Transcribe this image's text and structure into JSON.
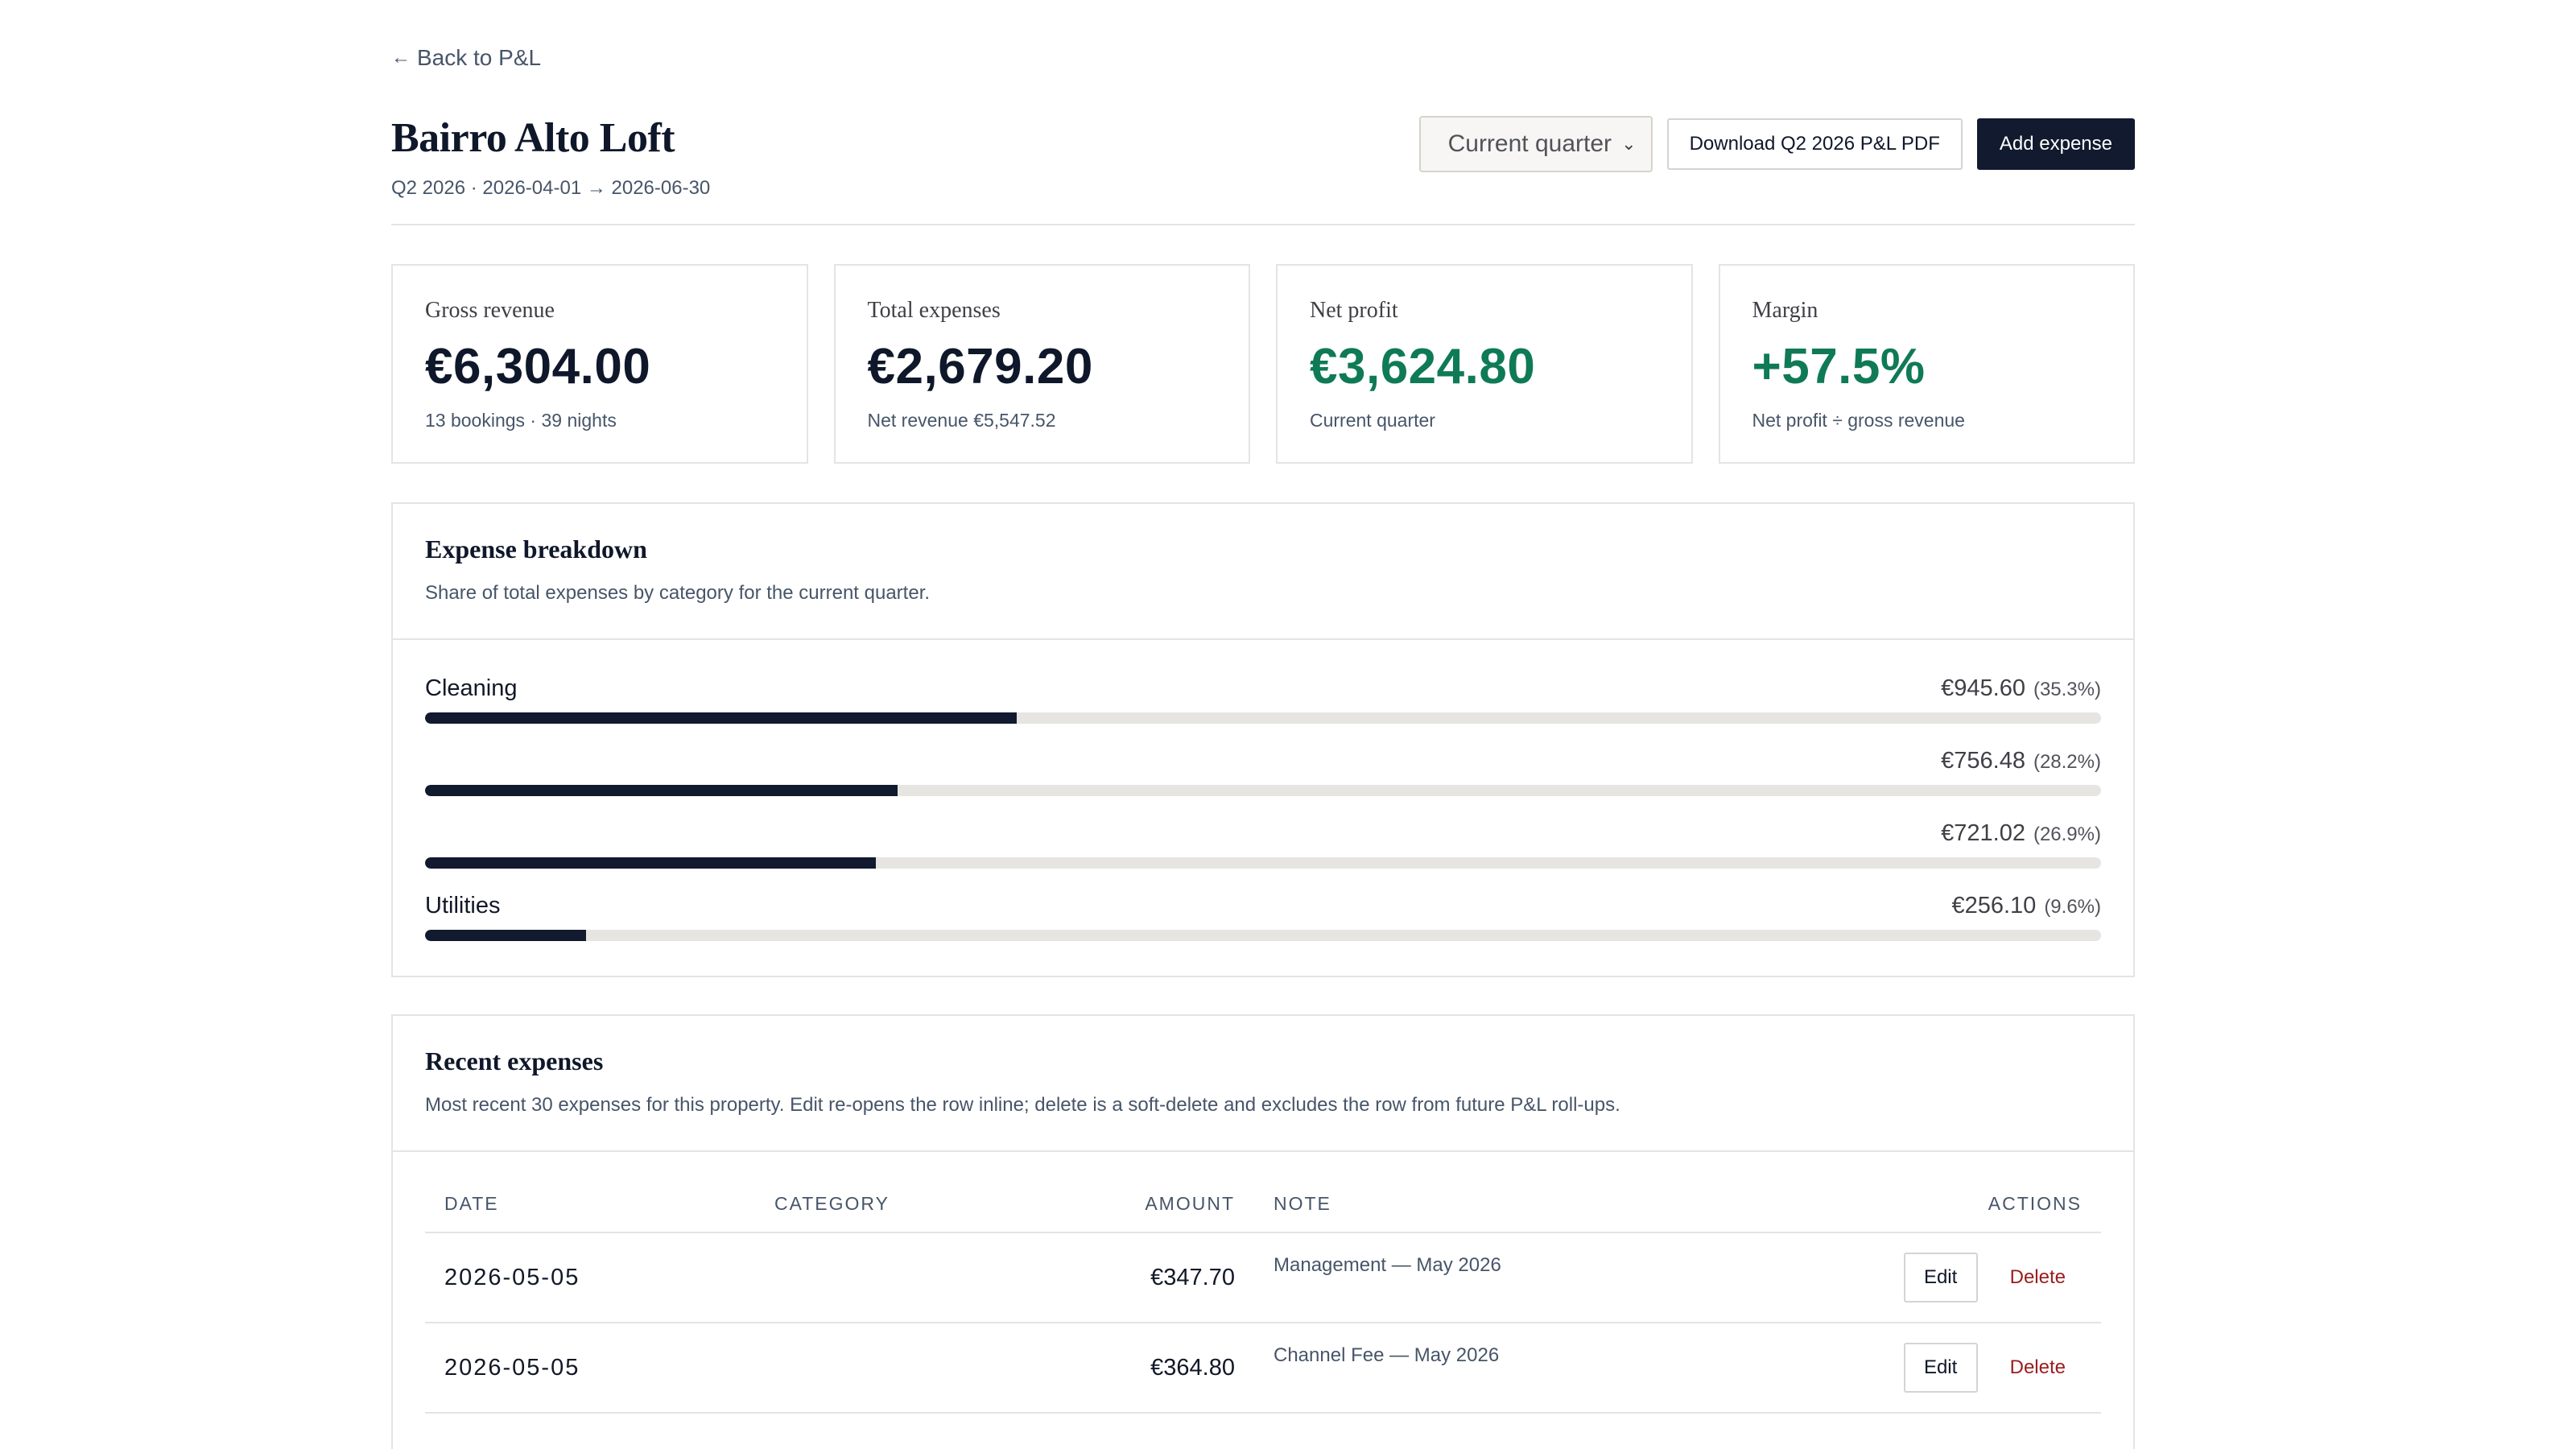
{
  "nav": {
    "back_arrow": "←",
    "back_label": "Back to P&L"
  },
  "header": {
    "title": "Bairro Alto Loft",
    "subtitle": "Q2 2026 · 2026-04-01 → 2026-06-30"
  },
  "controls": {
    "period_select": "Current quarter",
    "download_label": "Download Q2 2026 P&L PDF",
    "add_label": "Add expense"
  },
  "summary": [
    {
      "label": "Gross revenue",
      "value": "€6,304.00",
      "hint": "13 bookings · 39 nights"
    },
    {
      "label": "Total expenses",
      "value": "€2,679.20",
      "hint": "Net revenue €5,547.52"
    },
    {
      "label": "Net profit",
      "value": "€3,624.80",
      "hint": "Current quarter"
    },
    {
      "label": "Margin",
      "value": "+57.5%",
      "hint": "Net profit ÷ gross revenue"
    }
  ],
  "colors": {
    "accent_dark": "#111a2e",
    "positive": "#0f7a56",
    "danger": "#9b1c1c",
    "track": "#e7e5e2"
  },
  "breakdown": {
    "title": "Expense breakdown",
    "description": "Share of total expenses by category for the current quarter.",
    "items": [
      {
        "name": "Cleaning",
        "amount": "€945.60",
        "pct": "(35.3%)",
        "share": 0.353
      },
      {
        "name": "",
        "amount": "€756.48",
        "pct": "(28.2%)",
        "share": 0.282
      },
      {
        "name": "",
        "amount": "€721.02",
        "pct": "(26.9%)",
        "share": 0.269
      },
      {
        "name": "Utilities",
        "amount": "€256.10",
        "pct": "(9.6%)",
        "share": 0.096
      }
    ]
  },
  "recent": {
    "title": "Recent expenses",
    "description": "Most recent 30 expenses for this property. Edit re-opens the row inline; delete is a soft-delete and excludes the row from future P&L roll-ups.",
    "columns": {
      "date": "DATE",
      "category": "CATEGORY",
      "amount": "AMOUNT",
      "note": "NOTE",
      "actions": "ACTIONS"
    },
    "rows": [
      {
        "date": "2026-05-05",
        "category": "",
        "amount": "€347.70",
        "note": "Management — May 2026",
        "edit": "Edit",
        "delete": "Delete"
      },
      {
        "date": "2026-05-05",
        "category": "",
        "amount": "€364.80",
        "note": "Channel Fee — May 2026",
        "edit": "Edit",
        "delete": "Delete"
      }
    ]
  }
}
